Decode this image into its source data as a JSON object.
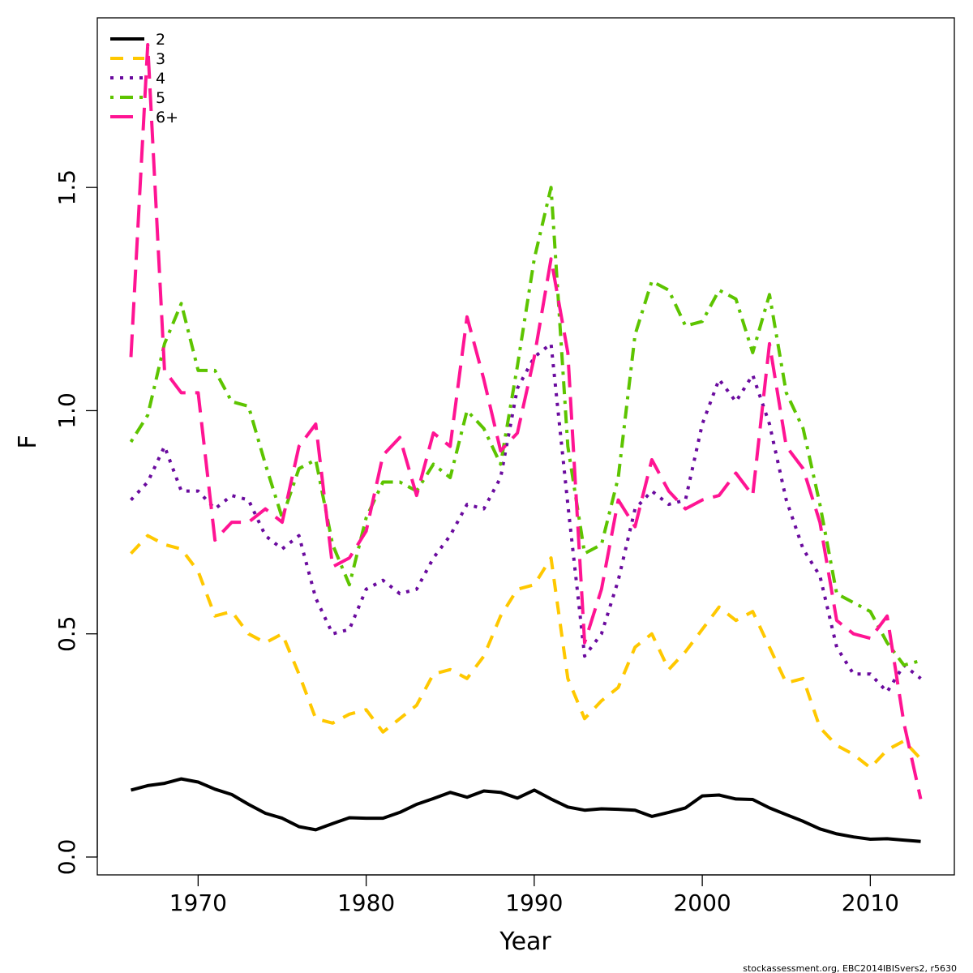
{
  "chart_data": {
    "type": "line",
    "xlabel": "Year",
    "ylabel": "F",
    "xlim": [
      1964,
      2015
    ],
    "ylim": [
      -0.04,
      1.88
    ],
    "xticks": [
      1970,
      1980,
      1990,
      2000,
      2010
    ],
    "xtick_labels": [
      "1970",
      "1980",
      "1990",
      "2000",
      "2010"
    ],
    "yticks": [
      0.0,
      0.5,
      1.0,
      1.5
    ],
    "ytick_labels": [
      "0.0",
      "0.5",
      "1.0",
      "1.5"
    ],
    "grid": false,
    "legend_position": "top-left",
    "x": [
      1966,
      1967,
      1968,
      1969,
      1970,
      1971,
      1972,
      1973,
      1974,
      1975,
      1976,
      1977,
      1978,
      1979,
      1980,
      1981,
      1982,
      1983,
      1984,
      1985,
      1986,
      1987,
      1988,
      1989,
      1990,
      1991,
      1992,
      1993,
      1994,
      1995,
      1996,
      1997,
      1998,
      1999,
      2000,
      2001,
      2002,
      2003,
      2004,
      2005,
      2006,
      2007,
      2008,
      2009,
      2010,
      2011,
      2012,
      2013
    ],
    "series": [
      {
        "name": "2",
        "color": "#000000",
        "dash": "solid",
        "values": [
          0.15,
          0.16,
          0.165,
          0.175,
          0.168,
          0.152,
          0.14,
          0.118,
          0.098,
          0.087,
          0.068,
          0.061,
          0.075,
          0.088,
          0.087,
          0.087,
          0.1,
          0.118,
          0.131,
          0.145,
          0.134,
          0.148,
          0.145,
          0.132,
          0.15,
          0.13,
          0.112,
          0.105,
          0.108,
          0.107,
          0.105,
          0.091,
          0.1,
          0.11,
          0.137,
          0.139,
          0.13,
          0.129,
          0.11,
          0.095,
          0.08,
          0.063,
          0.052,
          0.045,
          0.04,
          0.041,
          0.038,
          0.035
        ]
      },
      {
        "name": "3",
        "color": "#FFC800",
        "dash": "dashed",
        "values": [
          0.68,
          0.72,
          0.7,
          0.69,
          0.64,
          0.54,
          0.55,
          0.5,
          0.48,
          0.5,
          0.41,
          0.31,
          0.3,
          0.32,
          0.33,
          0.28,
          0.31,
          0.34,
          0.41,
          0.42,
          0.4,
          0.45,
          0.54,
          0.6,
          0.61,
          0.67,
          0.4,
          0.31,
          0.35,
          0.38,
          0.47,
          0.5,
          0.42,
          0.46,
          0.51,
          0.56,
          0.53,
          0.55,
          0.47,
          0.39,
          0.4,
          0.29,
          0.25,
          0.23,
          0.2,
          0.24,
          0.26,
          0.22
        ]
      },
      {
        "name": "4",
        "color": "#6A0A9E",
        "dash": "dotted",
        "values": [
          0.8,
          0.84,
          0.92,
          0.82,
          0.82,
          0.78,
          0.81,
          0.8,
          0.72,
          0.69,
          0.72,
          0.58,
          0.5,
          0.51,
          0.6,
          0.62,
          0.59,
          0.6,
          0.67,
          0.72,
          0.79,
          0.78,
          0.85,
          1.05,
          1.12,
          1.15,
          0.79,
          0.45,
          0.5,
          0.62,
          0.78,
          0.82,
          0.79,
          0.8,
          0.97,
          1.07,
          1.02,
          1.08,
          0.97,
          0.8,
          0.69,
          0.63,
          0.47,
          0.41,
          0.41,
          0.37,
          0.43,
          0.4
        ]
      },
      {
        "name": "5",
        "color": "#5DC400",
        "dash": "dotdash",
        "values": [
          0.93,
          0.99,
          1.15,
          1.24,
          1.09,
          1.09,
          1.02,
          1.01,
          0.88,
          0.76,
          0.87,
          0.89,
          0.7,
          0.61,
          0.76,
          0.84,
          0.84,
          0.82,
          0.88,
          0.85,
          1.0,
          0.96,
          0.88,
          1.1,
          1.34,
          1.5,
          0.92,
          0.68,
          0.7,
          0.85,
          1.17,
          1.29,
          1.27,
          1.19,
          1.2,
          1.27,
          1.25,
          1.13,
          1.26,
          1.04,
          0.96,
          0.79,
          0.59,
          0.57,
          0.55,
          0.48,
          0.43,
          0.44
        ]
      },
      {
        "name": "6+",
        "color": "#FF1493",
        "dash": "longdash",
        "values": [
          1.12,
          1.82,
          1.09,
          1.04,
          1.04,
          0.71,
          0.75,
          0.75,
          0.78,
          0.75,
          0.92,
          0.97,
          0.65,
          0.67,
          0.73,
          0.9,
          0.94,
          0.81,
          0.95,
          0.92,
          1.21,
          1.07,
          0.91,
          0.95,
          1.12,
          1.34,
          1.13,
          0.48,
          0.6,
          0.8,
          0.74,
          0.89,
          0.82,
          0.78,
          0.8,
          0.81,
          0.86,
          0.81,
          1.15,
          0.92,
          0.87,
          0.75,
          0.53,
          0.5,
          0.49,
          0.54,
          0.3,
          0.13
        ]
      }
    ]
  },
  "credit": "stockassessment.org, EBC2014IBISvers2, r5630"
}
